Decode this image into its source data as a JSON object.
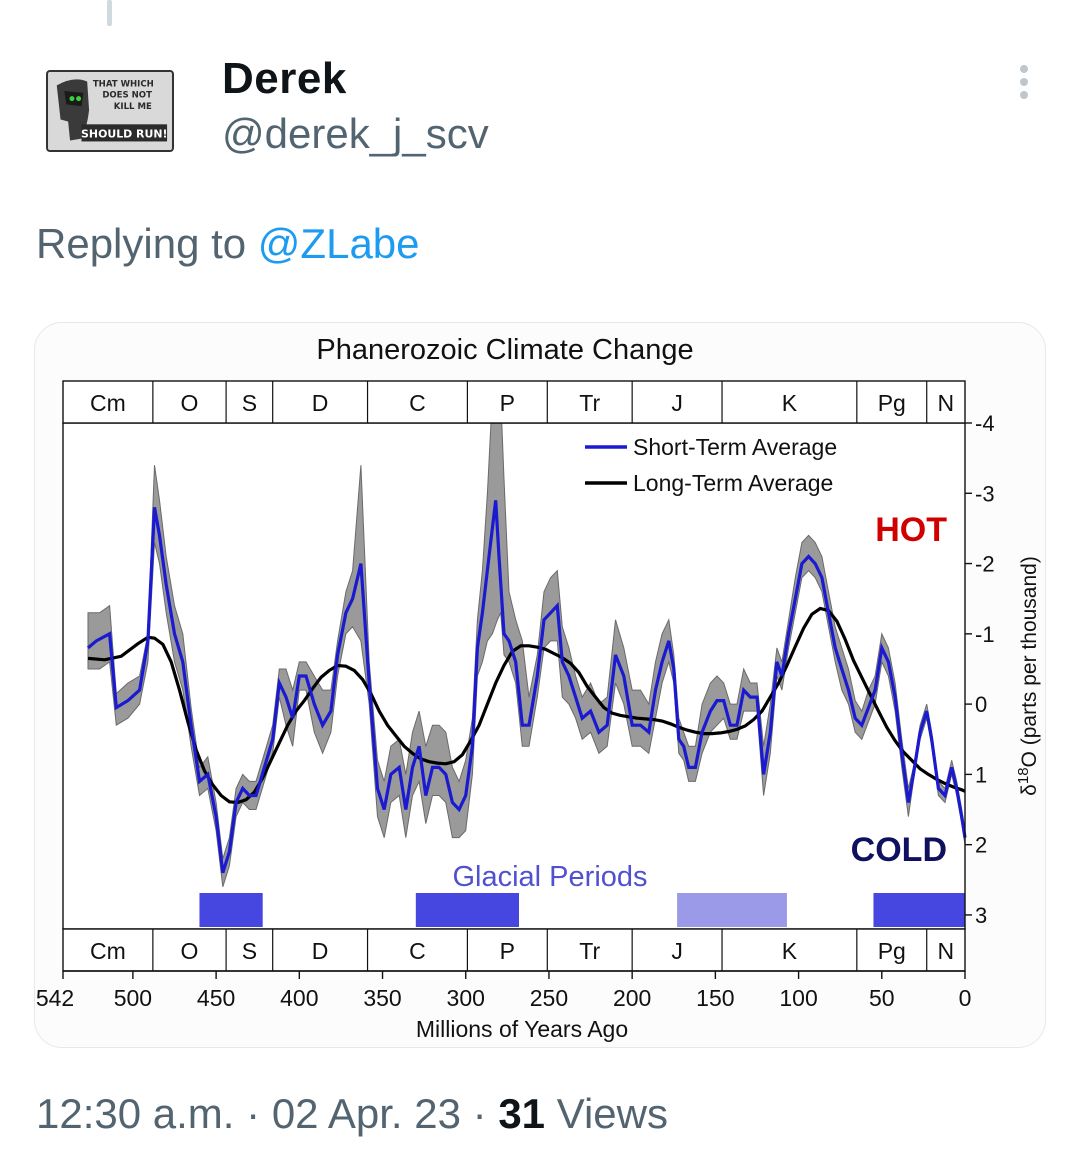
{
  "tweet": {
    "display_name": "Derek",
    "handle": "@derek_j_scv",
    "replying_prefix": "Replying to",
    "replying_to": "@ZLabe",
    "time": "12:30 a.m.",
    "separator": "·",
    "date": "02 Apr. 23",
    "views_count": "31",
    "views_label": "Views"
  },
  "avatar": {
    "icon": "spartan-helmet-logo",
    "text_lines": [
      "THAT WHICH",
      "DOES NOT",
      "KILL ME",
      "SHOULD RUN!"
    ]
  },
  "colors": {
    "short_term": "#1a1ad0",
    "long_term": "#000000",
    "hot": "#d00000",
    "cold": "#101060",
    "glacial": "#4646e0",
    "glacial_light": "#9a9ae8",
    "glacial_label": "#5050d0"
  },
  "chart_data": {
    "type": "line",
    "title": "Phanerozoic Climate Change",
    "xlabel": "Millions of Years Ago",
    "ylabel": "δ18O (parts per thousand)",
    "ylabel_prefix": "δ",
    "ylabel_sup": "18",
    "ylabel_main": "O (parts per thousand)",
    "xlim": [
      542,
      0
    ],
    "ylim": [
      -4,
      3.2
    ],
    "y_inverted": true,
    "x_ticks": [
      542,
      500,
      450,
      400,
      350,
      300,
      250,
      200,
      150,
      100,
      50,
      0
    ],
    "y_ticks": [
      -4,
      -3,
      -2,
      -1,
      0,
      1,
      2,
      3
    ],
    "periods": [
      {
        "label": "Cm",
        "start": 542,
        "end": 488
      },
      {
        "label": "O",
        "start": 488,
        "end": 444
      },
      {
        "label": "S",
        "start": 444,
        "end": 416
      },
      {
        "label": "D",
        "start": 416,
        "end": 359
      },
      {
        "label": "C",
        "start": 359,
        "end": 299
      },
      {
        "label": "P",
        "start": 299,
        "end": 251
      },
      {
        "label": "Tr",
        "start": 251,
        "end": 200
      },
      {
        "label": "J",
        "start": 200,
        "end": 146
      },
      {
        "label": "K",
        "start": 146,
        "end": 65
      },
      {
        "label": "Pg",
        "start": 65,
        "end": 23
      },
      {
        "label": "N",
        "start": 23,
        "end": 0
      }
    ],
    "legend": {
      "placement": "top-center",
      "entries": [
        {
          "label": "Short-Term Average",
          "series": "short_term"
        },
        {
          "label": "Long-Term Average",
          "series": "long_term"
        }
      ]
    },
    "annotations": {
      "hot": "HOT",
      "cold": "COLD",
      "glacial": "Glacial Periods"
    },
    "glacial_periods": [
      {
        "start": 460,
        "end": 422,
        "shade": "dark"
      },
      {
        "start": 330,
        "end": 268,
        "shade": "dark"
      },
      {
        "start": 173,
        "end": 107,
        "shade": "light"
      },
      {
        "start": 55,
        "end": 0,
        "shade": "dark"
      }
    ],
    "series": [
      {
        "name": "Short-Term Average",
        "key": "short_term",
        "x": [
          527,
          522,
          514,
          510,
          503,
          496,
          491,
          487,
          484,
          480,
          475,
          470,
          465,
          460,
          455,
          450,
          446,
          442,
          438,
          434,
          430,
          426,
          421,
          416,
          412,
          408,
          404,
          400,
          396,
          391,
          386,
          381,
          377,
          372,
          368,
          363,
          358,
          353,
          349,
          345,
          340,
          336,
          332,
          328,
          324,
          320,
          316,
          312,
          308,
          304,
          300,
          296,
          293,
          290,
          286,
          282,
          280,
          277,
          274,
          270,
          266,
          262,
          257,
          253,
          249,
          245,
          242,
          238,
          234,
          230,
          225,
          220,
          215,
          210,
          205,
          200,
          195,
          190,
          186,
          182,
          178,
          175,
          172,
          169,
          166,
          162,
          158,
          153,
          149,
          145,
          141,
          137,
          133,
          129,
          125,
          121,
          117,
          113,
          110,
          106,
          102,
          98,
          94,
          90,
          86,
          82,
          78,
          74,
          70,
          66,
          62,
          58,
          54,
          50,
          46,
          42,
          38,
          34,
          31,
          27,
          23,
          20,
          16,
          12,
          8,
          5,
          2,
          0
        ],
        "y": [
          -0.8,
          -0.9,
          -1.0,
          0.05,
          -0.05,
          -0.2,
          -0.9,
          -2.8,
          -2.4,
          -1.7,
          -1.0,
          -0.6,
          0.3,
          1.1,
          1.0,
          1.6,
          2.4,
          2.1,
          1.4,
          1.2,
          1.3,
          1.3,
          0.9,
          0.5,
          -0.3,
          -0.1,
          0.2,
          -0.4,
          -0.4,
          0.0,
          0.3,
          0.1,
          -0.7,
          -1.3,
          -1.5,
          -2.0,
          -0.3,
          1.2,
          1.5,
          1.0,
          0.9,
          1.5,
          0.9,
          0.6,
          1.3,
          0.9,
          0.9,
          1.0,
          1.4,
          1.5,
          1.3,
          0.6,
          -0.8,
          -1.3,
          -2.1,
          -2.9,
          -2.1,
          -1.0,
          -0.9,
          -0.6,
          0.3,
          0.3,
          -0.4,
          -1.2,
          -1.3,
          -1.4,
          -0.6,
          -0.4,
          -0.1,
          0.2,
          0.1,
          0.4,
          0.3,
          -0.7,
          -0.4,
          0.3,
          0.3,
          0.4,
          -0.2,
          -0.6,
          -0.9,
          -0.5,
          0.5,
          0.6,
          0.9,
          0.9,
          0.4,
          0.1,
          -0.05,
          -0.05,
          0.3,
          0.3,
          -0.2,
          -0.1,
          -0.1,
          1.0,
          0.4,
          -0.6,
          -0.4,
          -1.0,
          -1.5,
          -2.0,
          -2.1,
          -2.0,
          -1.8,
          -1.3,
          -0.8,
          -0.5,
          -0.2,
          0.2,
          0.3,
          0.05,
          -0.2,
          -0.8,
          -0.6,
          -0.1,
          0.7,
          1.4,
          1.0,
          0.4,
          0.1,
          0.5,
          1.2,
          1.3,
          0.9,
          1.2,
          1.6,
          1.9
        ]
      },
      {
        "name": "Long-Term Average",
        "key": "long_term",
        "x": [
          527,
          517,
          507,
          497,
          491,
          487,
          482,
          477,
          472,
          467,
          462,
          457,
          452,
          447,
          442,
          437,
          432,
          427,
          422,
          417,
          412,
          407,
          402,
          397,
          392,
          387,
          382,
          377,
          372,
          367,
          362,
          357,
          352,
          347,
          342,
          337,
          332,
          327,
          322,
          317,
          312,
          307,
          302,
          297,
          292,
          287,
          282,
          277,
          272,
          267,
          262,
          257,
          252,
          247,
          242,
          237,
          232,
          227,
          222,
          217,
          212,
          207,
          202,
          197,
          192,
          187,
          182,
          177,
          172,
          167,
          162,
          157,
          152,
          147,
          142,
          137,
          132,
          127,
          122,
          117,
          112,
          107,
          102,
          97,
          92,
          87,
          82,
          77,
          72,
          67,
          62,
          57,
          52,
          47,
          42,
          37,
          32,
          27,
          22,
          17,
          12,
          7,
          2,
          0
        ],
        "y": [
          -0.65,
          -0.63,
          -0.68,
          -0.86,
          -0.95,
          -0.94,
          -0.85,
          -0.6,
          -0.2,
          0.25,
          0.65,
          0.95,
          1.15,
          1.3,
          1.39,
          1.4,
          1.36,
          1.25,
          1.05,
          0.8,
          0.55,
          0.3,
          0.1,
          -0.05,
          -0.22,
          -0.38,
          -0.48,
          -0.55,
          -0.54,
          -0.48,
          -0.35,
          -0.15,
          0.1,
          0.3,
          0.45,
          0.6,
          0.7,
          0.78,
          0.82,
          0.84,
          0.85,
          0.82,
          0.72,
          0.52,
          0.3,
          0.0,
          -0.3,
          -0.55,
          -0.75,
          -0.83,
          -0.83,
          -0.81,
          -0.78,
          -0.72,
          -0.66,
          -0.58,
          -0.45,
          -0.25,
          -0.1,
          0.05,
          0.13,
          0.16,
          0.18,
          0.2,
          0.21,
          0.22,
          0.24,
          0.28,
          0.33,
          0.37,
          0.4,
          0.42,
          0.42,
          0.41,
          0.39,
          0.36,
          0.31,
          0.22,
          0.1,
          -0.1,
          -0.3,
          -0.55,
          -0.82,
          -1.08,
          -1.28,
          -1.36,
          -1.33,
          -1.18,
          -0.92,
          -0.62,
          -0.38,
          -0.14,
          0.1,
          0.33,
          0.52,
          0.68,
          0.8,
          0.92,
          1.0,
          1.07,
          1.13,
          1.18,
          1.22,
          1.24
        ]
      }
    ],
    "uncertainty_band": {
      "x": [
        527,
        520,
        514,
        510,
        503,
        496,
        491,
        487,
        484,
        480,
        475,
        470,
        465,
        460,
        455,
        450,
        446,
        442,
        438,
        434,
        430,
        426,
        421,
        416,
        412,
        408,
        404,
        400,
        396,
        391,
        386,
        381,
        377,
        372,
        368,
        363,
        358,
        353,
        349,
        345,
        340,
        336,
        332,
        328,
        324,
        320,
        316,
        312,
        308,
        304,
        300,
        296,
        293,
        290,
        287,
        284,
        281,
        279,
        277,
        274,
        270,
        266,
        262,
        257,
        253,
        249,
        245,
        242,
        238,
        234,
        230,
        225,
        220,
        215,
        210,
        205,
        200,
        195,
        190,
        186,
        182,
        178,
        175,
        172,
        169,
        166,
        162,
        158,
        153,
        149,
        145,
        141,
        137,
        133,
        129,
        125,
        121,
        117,
        113,
        110,
        106,
        102,
        98,
        94,
        90,
        86,
        82,
        78,
        74,
        70,
        66,
        62,
        58,
        54,
        50,
        46,
        42,
        38,
        34,
        31,
        27,
        23,
        20,
        16,
        12,
        8,
        5,
        2,
        0
      ],
      "lower": [
        -1.3,
        -1.3,
        -1.4,
        -0.15,
        -0.3,
        -0.4,
        -1.0,
        -3.4,
        -2.9,
        -2.1,
        -1.4,
        -1.0,
        0.05,
        0.9,
        0.75,
        1.4,
        2.2,
        1.9,
        1.2,
        1.0,
        1.1,
        1.1,
        0.7,
        0.3,
        -0.5,
        -0.5,
        -0.2,
        -0.6,
        -0.6,
        -0.4,
        -0.2,
        -0.2,
        -0.9,
        -1.6,
        -1.9,
        -3.4,
        -0.6,
        0.8,
        1.1,
        0.6,
        0.5,
        1.0,
        0.4,
        0.1,
        0.6,
        0.3,
        0.3,
        0.4,
        0.9,
        1.1,
        0.8,
        0.2,
        -1.2,
        -1.9,
        -3.0,
        -4.4,
        -4.4,
        -4.4,
        -3.2,
        -1.6,
        -1.2,
        -0.9,
        -0.1,
        -0.7,
        -1.6,
        -1.8,
        -1.9,
        -1.1,
        -0.8,
        -0.4,
        -0.1,
        -0.3,
        0.0,
        -0.1,
        -1.2,
        -0.8,
        -0.2,
        -0.2,
        0.0,
        -0.6,
        -1.0,
        -1.2,
        -0.7,
        0.2,
        0.4,
        0.6,
        0.6,
        0.0,
        -0.3,
        -0.4,
        -0.3,
        0.0,
        0.0,
        -0.5,
        -0.3,
        -0.3,
        0.6,
        0.0,
        -0.8,
        -0.6,
        -1.2,
        -1.8,
        -2.3,
        -2.4,
        -2.3,
        -2.1,
        -1.6,
        -1.1,
        -0.8,
        -0.5,
        -0.05,
        0.1,
        -0.2,
        -0.4,
        -1.0,
        -0.8,
        -0.3,
        0.5,
        1.2,
        0.9,
        0.3,
        0.0,
        0.4,
        1.1,
        1.2,
        0.8,
        1.1,
        1.5,
        1.8
      ],
      "upper": [
        -0.5,
        -0.5,
        -0.6,
        0.3,
        0.2,
        0.0,
        -0.6,
        -2.3,
        -2.0,
        -1.3,
        -0.6,
        -0.2,
        0.6,
        1.3,
        1.2,
        1.8,
        2.6,
        2.3,
        1.6,
        1.4,
        1.5,
        1.5,
        1.1,
        0.7,
        -0.1,
        0.3,
        0.6,
        -0.2,
        -0.2,
        0.4,
        0.7,
        0.4,
        -0.4,
        -1.0,
        -1.1,
        -0.9,
        0.0,
        1.6,
        1.9,
        1.4,
        1.3,
        1.9,
        1.3,
        1.1,
        1.7,
        1.3,
        1.3,
        1.4,
        1.9,
        1.9,
        1.8,
        1.0,
        -0.4,
        -0.6,
        -0.9,
        -1.0,
        -1.2,
        -1.3,
        -0.7,
        -0.6,
        -0.3,
        0.6,
        0.6,
        -0.1,
        -0.8,
        -0.9,
        -0.9,
        -0.1,
        0.0,
        0.2,
        0.5,
        0.4,
        0.7,
        0.6,
        -0.3,
        0.0,
        0.6,
        0.6,
        0.7,
        0.2,
        -0.3,
        -0.6,
        -0.3,
        0.7,
        0.8,
        1.1,
        1.1,
        0.7,
        0.4,
        0.3,
        0.2,
        0.5,
        0.5,
        0.1,
        0.1,
        0.1,
        1.3,
        0.7,
        -0.4,
        -0.2,
        -0.8,
        -1.3,
        -1.8,
        -1.9,
        -1.8,
        -1.6,
        -1.1,
        -0.6,
        -0.2,
        0.0,
        0.4,
        0.5,
        0.25,
        0.0,
        -0.6,
        -0.4,
        0.1,
        0.9,
        1.6,
        1.1,
        0.5,
        0.2,
        0.6,
        1.3,
        1.4,
        1.0,
        1.3,
        1.7,
        2.0
      ]
    }
  }
}
